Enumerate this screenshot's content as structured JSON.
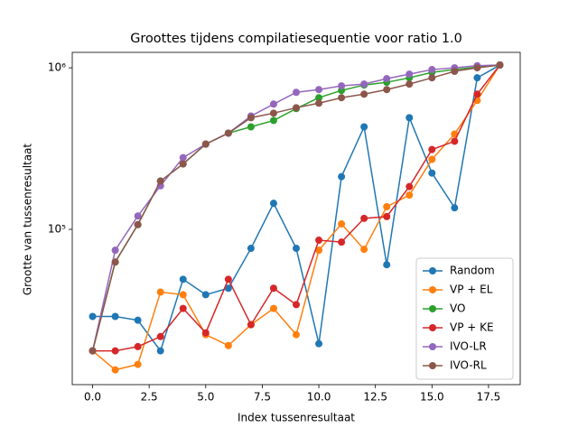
{
  "chart_data": {
    "type": "line",
    "title": "Groottes tijdens compilatiesequentie voor ratio 1.0",
    "x_label": "Index tussenresultaat",
    "y_label": "Grootte van tussenresultaat",
    "log_y": true,
    "legend": "lower right",
    "x": [
      0,
      1,
      2,
      3,
      4,
      5,
      6,
      7,
      8,
      9,
      10,
      11,
      12,
      13,
      14,
      15,
      16,
      17,
      18
    ],
    "xlim": [
      -0.9,
      18.9
    ],
    "xticks": [
      {
        "value": 0,
        "label": "0.0"
      },
      2.5,
      {
        "value": 5,
        "label": "5.0"
      },
      7.5,
      {
        "value": 10,
        "label": "10.0"
      },
      12.5,
      {
        "value": 15,
        "label": "15.0"
      },
      17.5
    ],
    "ylim": [
      10940,
      1246000
    ],
    "yticks": [
      {
        "value": 100000,
        "label": "10⁵"
      },
      {
        "value": 1000000,
        "label": "10⁶"
      }
    ],
    "series": [
      {
        "name": "Random",
        "color": "#1f77b4",
        "values": [
          28900,
          28900,
          27400,
          17700,
          49100,
          39400,
          43200,
          76300,
          145000,
          76300,
          19600,
          212000,
          431000,
          60400,
          491000,
          223000,
          136000,
          867000,
          1040000
        ]
      },
      {
        "name": "VP + EL",
        "color": "#ff7f0e",
        "values": [
          17700,
          13500,
          14600,
          40900,
          39400,
          22300,
          19100,
          25700,
          32400,
          22300,
          74300,
          108000,
          75200,
          138000,
          163000,
          271000,
          389000,
          628000,
          1040000
        ]
      },
      {
        "name": "VO",
        "color": "#2ca02c",
        "values": [
          17700,
          62800,
          107000,
          199000,
          254000,
          337000,
          394000,
          431000,
          472000,
          559000,
          653000,
          724000,
          782000,
          813000,
          867000,
          937000,
          975000,
          1010000,
          1040000
        ]
      },
      {
        "name": "VP + KE",
        "color": "#d62728",
        "values": [
          17700,
          17700,
          18800,
          21700,
          32400,
          22900,
          49100,
          25700,
          43200,
          34200,
          85700,
          83400,
          117000,
          120000,
          184000,
          312000,
          351000,
          687000,
          1040000
        ]
      },
      {
        "name": "IVO-LR",
        "color": "#9467bd",
        "values": [
          17700,
          74300,
          121000,
          186000,
          278000,
          337000,
          394000,
          503000,
          596000,
          705000,
          733000,
          773000,
          793000,
          857000,
          914000,
          975000,
          1000000,
          1030000,
          1040000
        ]
      },
      {
        "name": "IVO-RL",
        "color": "#8c564b",
        "values": [
          17700,
          62800,
          107000,
          199000,
          254000,
          337000,
          394000,
          491000,
          524000,
          566000,
          604000,
          653000,
          687000,
          733000,
          793000,
          867000,
          951000,
          1000000,
          1040000
        ]
      }
    ]
  }
}
